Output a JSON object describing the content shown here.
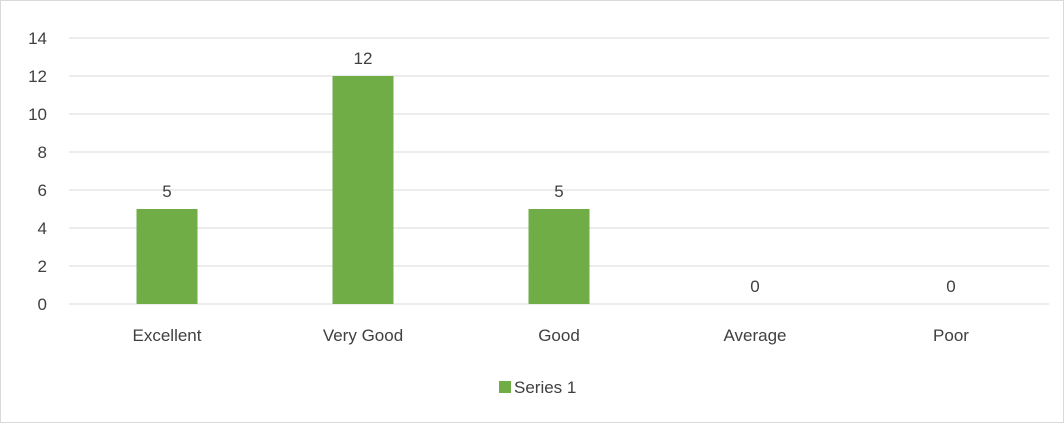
{
  "chart_data": {
    "type": "bar",
    "categories": [
      "Excellent",
      "Very Good",
      "Good",
      "Average",
      "Poor"
    ],
    "series": [
      {
        "name": "Series 1",
        "values": [
          5,
          12,
          5,
          0,
          0
        ],
        "color": "#70ad47"
      }
    ],
    "ylim": [
      0,
      14
    ],
    "yticks": [
      0,
      2,
      4,
      6,
      8,
      10,
      12,
      14
    ],
    "grid": true,
    "legend_position": "bottom",
    "data_labels": true,
    "colors": {
      "gridline": "#d9d9d9",
      "text": "#404040",
      "border": "#d9d9d9"
    }
  }
}
